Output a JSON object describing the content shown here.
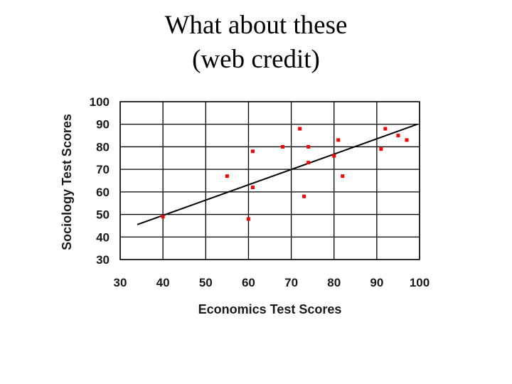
{
  "slide": {
    "title_line1": "What about these",
    "title_line2": "(web credit)"
  },
  "chart_data": {
    "type": "scatter",
    "title": "",
    "xlabel": "Economics Test Scores",
    "ylabel": "Sociology Test Scores",
    "xlim": [
      30,
      100
    ],
    "ylim": [
      30,
      100
    ],
    "xticks": [
      30,
      40,
      50,
      60,
      70,
      80,
      90,
      100
    ],
    "yticks": [
      30,
      40,
      50,
      60,
      70,
      80,
      90,
      100
    ],
    "grid": true,
    "legend": "none",
    "point_color": "#ff0000",
    "line_color": "#000000",
    "points": [
      {
        "x": 40,
        "y": 49
      },
      {
        "x": 55,
        "y": 67
      },
      {
        "x": 60,
        "y": 48
      },
      {
        "x": 61,
        "y": 78
      },
      {
        "x": 61,
        "y": 62
      },
      {
        "x": 68,
        "y": 80
      },
      {
        "x": 72,
        "y": 88
      },
      {
        "x": 73,
        "y": 58
      },
      {
        "x": 74,
        "y": 80
      },
      {
        "x": 74,
        "y": 73
      },
      {
        "x": 80,
        "y": 76
      },
      {
        "x": 81,
        "y": 83
      },
      {
        "x": 82,
        "y": 67
      },
      {
        "x": 91,
        "y": 79
      },
      {
        "x": 92,
        "y": 88
      },
      {
        "x": 95,
        "y": 85
      },
      {
        "x": 97,
        "y": 83
      }
    ],
    "trend_line": {
      "x": [
        34,
        99.5
      ],
      "y": [
        45.5,
        90
      ]
    }
  }
}
